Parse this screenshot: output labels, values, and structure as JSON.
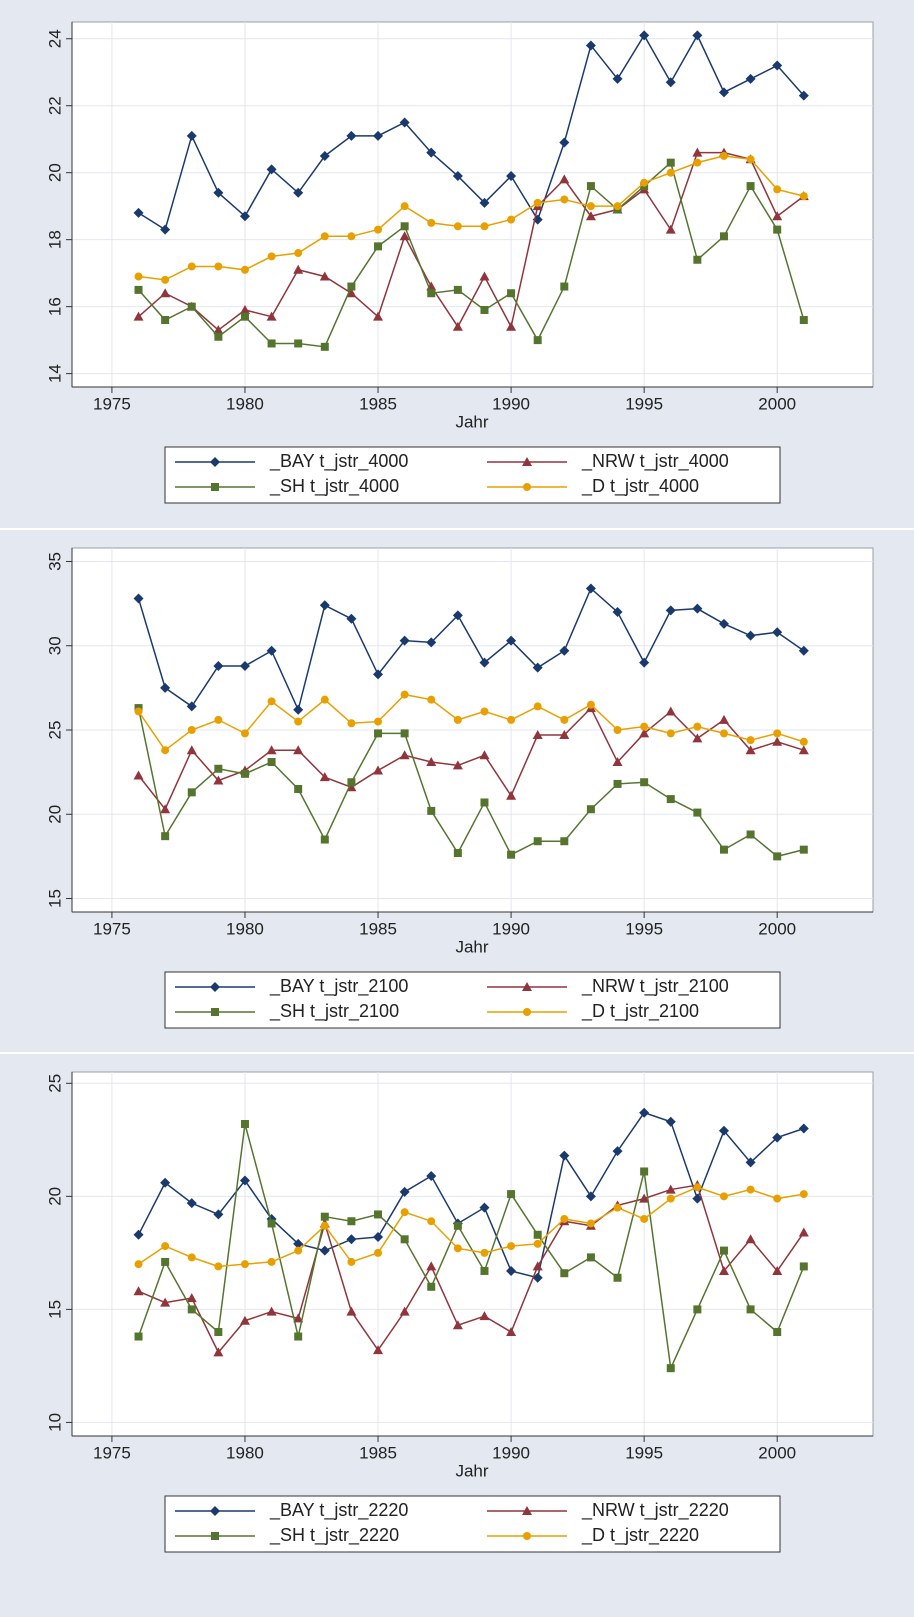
{
  "chart_data": [
    {
      "type": "line",
      "x_label": "Jahr",
      "x": [
        1976,
        1977,
        1978,
        1979,
        1980,
        1981,
        1982,
        1983,
        1984,
        1985,
        1986,
        1987,
        1988,
        1989,
        1990,
        1991,
        1992,
        1993,
        1994,
        1995,
        1996,
        1997,
        1998,
        1999,
        2000,
        2001
      ],
      "xlim": [
        1973.5,
        2003.6
      ],
      "xticks": [
        1975,
        1980,
        1985,
        1990,
        1995,
        2000
      ],
      "ylim": [
        13.6,
        24.5
      ],
      "yticks": [
        14,
        16,
        18,
        20,
        22,
        24
      ],
      "grid": true,
      "legend": "bottom",
      "series": [
        {
          "name": "_BAY t_jstr_4000",
          "color": "#1a3a6e",
          "marker": "diamond",
          "values": [
            18.8,
            18.3,
            21.1,
            19.4,
            18.7,
            20.1,
            19.4,
            20.5,
            21.1,
            21.1,
            21.5,
            20.6,
            19.9,
            19.1,
            19.9,
            18.6,
            20.9,
            23.8,
            22.8,
            24.1,
            22.7,
            24.1,
            22.4,
            22.8,
            23.2,
            22.3
          ]
        },
        {
          "name": "_NRW t_jstr_4000",
          "color": "#90353b",
          "marker": "triangle",
          "values": [
            15.7,
            16.4,
            16.0,
            15.3,
            15.9,
            15.7,
            17.1,
            16.9,
            16.4,
            15.7,
            18.1,
            16.6,
            15.4,
            16.9,
            15.4,
            19.0,
            19.8,
            18.7,
            18.9,
            19.5,
            18.3,
            20.6,
            20.6,
            20.4,
            18.7,
            19.3
          ]
        },
        {
          "name": "_SH t_jstr_4000",
          "color": "#55752f",
          "marker": "square",
          "values": [
            16.5,
            15.6,
            16.0,
            15.1,
            15.7,
            14.9,
            14.9,
            14.8,
            16.6,
            17.8,
            18.4,
            16.4,
            16.5,
            15.9,
            16.4,
            15.0,
            16.6,
            19.6,
            18.9,
            19.6,
            20.3,
            17.4,
            18.1,
            19.6,
            18.3,
            15.6
          ]
        },
        {
          "name": "_D t_jstr_4000",
          "color": "#e8a000",
          "marker": "circle",
          "values": [
            16.9,
            16.8,
            17.2,
            17.2,
            17.1,
            17.5,
            17.6,
            18.1,
            18.1,
            18.3,
            19.0,
            18.5,
            18.4,
            18.4,
            18.6,
            19.1,
            19.2,
            19.0,
            19.0,
            19.7,
            20.0,
            20.3,
            20.5,
            20.4,
            19.5,
            19.3
          ]
        }
      ]
    },
    {
      "type": "line",
      "x_label": "Jahr",
      "x": [
        1976,
        1977,
        1978,
        1979,
        1980,
        1981,
        1982,
        1983,
        1984,
        1985,
        1986,
        1987,
        1988,
        1989,
        1990,
        1991,
        1992,
        1993,
        1994,
        1995,
        1996,
        1997,
        1998,
        1999,
        2000,
        2001
      ],
      "xlim": [
        1973.5,
        2003.6
      ],
      "xticks": [
        1975,
        1980,
        1985,
        1990,
        1995,
        2000
      ],
      "ylim": [
        14.2,
        35.8
      ],
      "yticks": [
        15,
        20,
        25,
        30,
        35
      ],
      "grid": true,
      "legend": "bottom",
      "series": [
        {
          "name": "_BAY t_jstr_2100",
          "color": "#1a3a6e",
          "marker": "diamond",
          "values": [
            32.8,
            27.5,
            26.4,
            28.8,
            28.8,
            29.7,
            26.2,
            32.4,
            31.6,
            28.3,
            30.3,
            30.2,
            31.8,
            29.0,
            30.3,
            28.7,
            29.7,
            33.4,
            32.0,
            29.0,
            32.1,
            32.2,
            31.3,
            30.6,
            30.8,
            29.7
          ]
        },
        {
          "name": "_NRW t_jstr_2100",
          "color": "#90353b",
          "marker": "triangle",
          "values": [
            22.3,
            20.3,
            23.8,
            22.0,
            22.6,
            23.8,
            23.8,
            22.2,
            21.6,
            22.6,
            23.5,
            23.1,
            22.9,
            23.5,
            21.1,
            24.7,
            24.7,
            26.3,
            23.1,
            24.8,
            26.1,
            24.5,
            25.6,
            23.8,
            24.3,
            23.8
          ]
        },
        {
          "name": "_SH t_jstr_2100",
          "color": "#55752f",
          "marker": "square",
          "values": [
            26.3,
            18.7,
            21.3,
            22.7,
            22.4,
            23.1,
            21.5,
            18.5,
            21.9,
            24.8,
            24.8,
            20.2,
            17.7,
            20.7,
            17.6,
            18.4,
            18.4,
            20.3,
            21.8,
            21.9,
            20.9,
            20.1,
            17.9,
            18.8,
            17.5,
            17.9
          ]
        },
        {
          "name": "_D t_jstr_2100",
          "color": "#e8a000",
          "marker": "circle",
          "values": [
            26.1,
            23.8,
            25.0,
            25.6,
            24.8,
            26.7,
            25.5,
            26.8,
            25.4,
            25.5,
            27.1,
            26.8,
            25.6,
            26.1,
            25.6,
            26.4,
            25.6,
            26.5,
            25.0,
            25.2,
            24.8,
            25.2,
            24.8,
            24.4,
            24.8,
            24.3
          ]
        }
      ]
    },
    {
      "type": "line",
      "x_label": "Jahr",
      "x": [
        1976,
        1977,
        1978,
        1979,
        1980,
        1981,
        1982,
        1983,
        1984,
        1985,
        1986,
        1987,
        1988,
        1989,
        1990,
        1991,
        1992,
        1993,
        1994,
        1995,
        1996,
        1997,
        1998,
        1999,
        2000,
        2001
      ],
      "xlim": [
        1973.5,
        2003.6
      ],
      "xticks": [
        1975,
        1980,
        1985,
        1990,
        1995,
        2000
      ],
      "ylim": [
        9.4,
        25.5
      ],
      "yticks": [
        10,
        15,
        20,
        25
      ],
      "grid": true,
      "legend": "bottom",
      "series": [
        {
          "name": "_BAY t_jstr_2220",
          "color": "#1a3a6e",
          "marker": "diamond",
          "values": [
            18.3,
            20.6,
            19.7,
            19.2,
            20.7,
            19.0,
            17.9,
            17.6,
            18.1,
            18.2,
            20.2,
            20.9,
            18.8,
            19.5,
            16.7,
            16.4,
            21.8,
            20.0,
            22.0,
            23.7,
            23.3,
            19.9,
            22.9,
            21.5,
            22.6,
            23.0
          ]
        },
        {
          "name": "_NRW t_jstr_2220",
          "color": "#90353b",
          "marker": "triangle",
          "values": [
            15.8,
            15.3,
            15.5,
            13.1,
            14.5,
            14.9,
            14.6,
            18.8,
            14.9,
            13.2,
            14.9,
            16.9,
            14.3,
            14.7,
            14.0,
            16.9,
            18.9,
            18.7,
            19.6,
            19.9,
            20.3,
            20.5,
            16.7,
            18.1,
            16.7,
            18.4
          ]
        },
        {
          "name": "_SH t_jstr_2220",
          "color": "#55752f",
          "marker": "square",
          "values": [
            13.8,
            17.1,
            15.0,
            14.0,
            23.2,
            18.8,
            13.8,
            19.1,
            18.9,
            19.2,
            18.1,
            16.0,
            18.7,
            16.7,
            20.1,
            18.3,
            16.6,
            17.3,
            16.4,
            21.1,
            12.4,
            15.0,
            17.6,
            15.0,
            14.0,
            16.9
          ]
        },
        {
          "name": "_D t_jstr_2220",
          "color": "#e8a000",
          "marker": "circle",
          "values": [
            17.0,
            17.8,
            17.3,
            16.9,
            17.0,
            17.1,
            17.6,
            18.7,
            17.1,
            17.5,
            19.3,
            18.9,
            17.7,
            17.5,
            17.8,
            17.9,
            19.0,
            18.8,
            19.5,
            19.0,
            19.9,
            20.4,
            20.0,
            20.3,
            19.9,
            20.1
          ]
        }
      ]
    }
  ]
}
